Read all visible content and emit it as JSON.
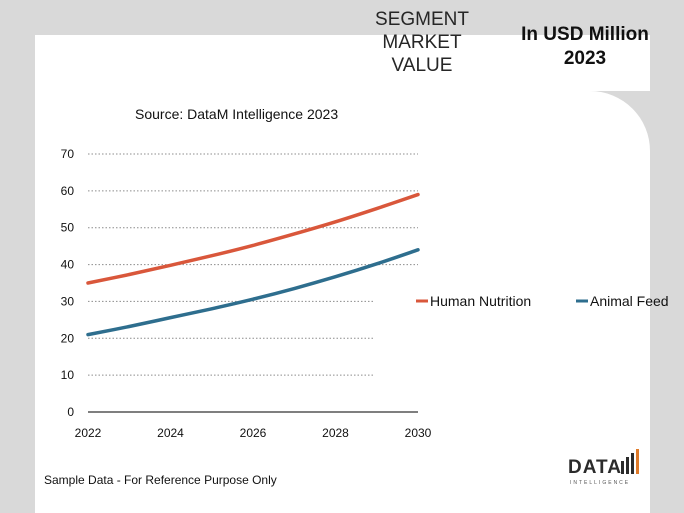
{
  "header": {
    "segment_title_lines": [
      "SEGMENT",
      "MARKET",
      "VALUE"
    ],
    "unit_title_lines": [
      "In USD Million",
      "2023"
    ]
  },
  "source_text": "Source: DataM Intelligence  2023",
  "footnote": "Sample Data - For Reference Purpose Only",
  "logo": {
    "text": "DATA",
    "subtext": "INTELLIGENCE"
  },
  "colors": {
    "human_nutrition": "#d9573b",
    "animal_feed": "#2e6e8e",
    "grid": "#8c8c8c",
    "axis": "#333333",
    "logo_accent": "#e07b2a"
  },
  "chart_data": {
    "type": "line",
    "title": "",
    "xlabel": "",
    "ylabel": "",
    "x_ticks": [
      "2022",
      "2024",
      "2026",
      "2028",
      "2030"
    ],
    "y_ticks": [
      "0",
      "10",
      "20",
      "30",
      "40",
      "50",
      "60",
      "70"
    ],
    "xlim": [
      2022,
      2030
    ],
    "ylim": [
      0,
      70
    ],
    "grid": true,
    "legend_position": "right",
    "series": [
      {
        "name": "Human Nutrition",
        "x": [
          2022,
          2023,
          2024,
          2025,
          2026,
          2027,
          2028,
          2029,
          2030
        ],
        "values": [
          35,
          37.3,
          39.8,
          42.4,
          45.2,
          48.3,
          51.6,
          55.2,
          59
        ]
      },
      {
        "name": "Animal Feed",
        "x": [
          2022,
          2023,
          2024,
          2025,
          2026,
          2027,
          2028,
          2029,
          2030
        ],
        "values": [
          21,
          23.2,
          25.6,
          28,
          30.6,
          33.5,
          36.7,
          40.2,
          44
        ]
      }
    ]
  }
}
